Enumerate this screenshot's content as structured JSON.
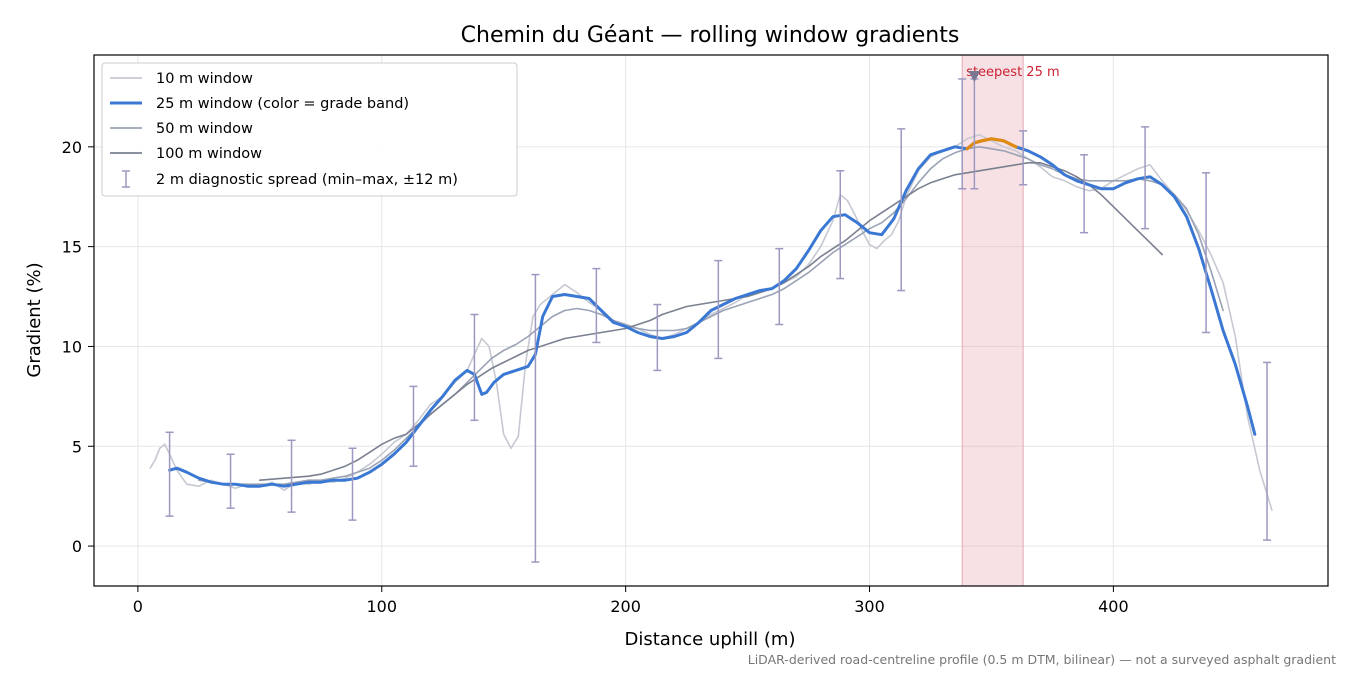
{
  "chart_data": {
    "type": "line",
    "title": "Chemin du Géant — rolling window gradients",
    "xlabel": "Distance uphill (m)",
    "ylabel": "Gradient (%)",
    "xlim": [
      -18,
      488
    ],
    "ylim": [
      -2,
      24.6
    ],
    "xticks": [
      0,
      100,
      200,
      300,
      400
    ],
    "yticks": [
      0,
      5,
      10,
      15,
      20
    ],
    "grid": true,
    "legend_position": "top-left",
    "footnote": "LiDAR-derived road-centreline profile (0.5 m DTM, bilinear) — not a surveyed asphalt gradient",
    "colors": {
      "w10": "#c6c9d2",
      "w25": "#3a78d4",
      "w25_peak": "#e08a10",
      "w50": "#9aa2b5",
      "w100": "#7a8090",
      "errorbar": "#9c98c0",
      "highlight": "#e8a8b4",
      "annotation": "#cc2233",
      "marker": "#7a7690"
    },
    "highlight_band": {
      "x": [
        338,
        363
      ],
      "label": "steepest 25 m"
    },
    "peak_marker": {
      "x": 343,
      "y": 23.5
    },
    "series": [
      {
        "name": "10 m window",
        "key": "w10",
        "x": [
          5,
          7,
          9,
          11,
          13,
          16,
          20,
          25,
          30,
          35,
          40,
          45,
          50,
          55,
          60,
          65,
          70,
          75,
          80,
          85,
          90,
          95,
          100,
          105,
          110,
          115,
          120,
          125,
          130,
          135,
          138,
          141,
          144,
          147,
          150,
          153,
          156,
          159,
          162,
          165,
          170,
          175,
          180,
          185,
          190,
          195,
          200,
          205,
          210,
          215,
          220,
          225,
          230,
          235,
          240,
          245,
          250,
          255,
          260,
          265,
          270,
          275,
          280,
          285,
          288,
          291,
          294,
          297,
          300,
          303,
          306,
          309,
          312,
          315,
          320,
          325,
          330,
          335,
          340,
          345,
          350,
          355,
          360,
          365,
          370,
          375,
          380,
          385,
          390,
          395,
          400,
          405,
          410,
          415,
          420,
          425,
          430,
          435,
          440,
          445,
          450,
          455,
          460,
          465
        ],
        "y": [
          3.9,
          4.3,
          4.9,
          5.1,
          4.6,
          3.8,
          3.1,
          3.0,
          3.3,
          3.1,
          2.9,
          3.1,
          3.0,
          3.2,
          2.8,
          3.2,
          3.1,
          3.3,
          3.2,
          3.4,
          3.7,
          4.1,
          4.6,
          5.2,
          5.6,
          6.3,
          7.1,
          7.5,
          8.2,
          8.8,
          9.6,
          10.4,
          10.0,
          8.2,
          5.6,
          4.9,
          5.5,
          9.2,
          11.5,
          12.1,
          12.6,
          13.1,
          12.7,
          12.2,
          11.8,
          11.3,
          11.0,
          10.9,
          10.6,
          10.4,
          10.6,
          10.9,
          11.2,
          11.6,
          11.9,
          12.2,
          12.6,
          12.8,
          12.9,
          13.2,
          13.5,
          14.1,
          15.0,
          16.3,
          17.6,
          17.3,
          16.6,
          15.8,
          15.1,
          14.9,
          15.3,
          15.6,
          16.3,
          17.5,
          18.8,
          19.5,
          19.8,
          20.0,
          20.4,
          20.6,
          20.3,
          20.0,
          19.8,
          19.4,
          19.0,
          18.5,
          18.3,
          18.0,
          17.8,
          17.9,
          18.3,
          18.6,
          18.9,
          19.1,
          18.3,
          17.6,
          16.8,
          15.8,
          14.6,
          13.2,
          10.5,
          6.5,
          3.8,
          1.8
        ]
      },
      {
        "name": "25 m window (color = grade band)",
        "key": "w25",
        "x": [
          13,
          16,
          20,
          25,
          30,
          35,
          40,
          45,
          50,
          55,
          60,
          65,
          70,
          75,
          80,
          85,
          90,
          95,
          100,
          105,
          110,
          115,
          120,
          125,
          130,
          135,
          138,
          141,
          143,
          146,
          150,
          155,
          160,
          163,
          166,
          170,
          175,
          180,
          185,
          190,
          195,
          200,
          205,
          210,
          215,
          220,
          225,
          230,
          235,
          240,
          245,
          250,
          255,
          260,
          265,
          270,
          275,
          280,
          285,
          290,
          295,
          300,
          305,
          310,
          315,
          320,
          325,
          330,
          335,
          340,
          343,
          346,
          350,
          355,
          360,
          365,
          370,
          375,
          380,
          385,
          390,
          395,
          400,
          405,
          410,
          415,
          420,
          425,
          430,
          435,
          440,
          445,
          450,
          455,
          458
        ],
        "y": [
          3.8,
          3.9,
          3.7,
          3.4,
          3.2,
          3.1,
          3.1,
          3.0,
          3.0,
          3.1,
          3.0,
          3.1,
          3.2,
          3.2,
          3.3,
          3.3,
          3.4,
          3.7,
          4.1,
          4.6,
          5.2,
          6.0,
          6.8,
          7.5,
          8.3,
          8.8,
          8.6,
          7.6,
          7.7,
          8.2,
          8.6,
          8.8,
          9.0,
          9.6,
          11.5,
          12.5,
          12.6,
          12.5,
          12.4,
          11.8,
          11.2,
          11.0,
          10.7,
          10.5,
          10.4,
          10.5,
          10.7,
          11.2,
          11.8,
          12.1,
          12.4,
          12.6,
          12.8,
          12.9,
          13.3,
          13.9,
          14.8,
          15.8,
          16.5,
          16.6,
          16.2,
          15.7,
          15.6,
          16.4,
          17.8,
          18.9,
          19.6,
          19.8,
          20.0,
          19.9,
          20.2,
          20.3,
          20.4,
          20.3,
          20.0,
          19.8,
          19.5,
          19.1,
          18.6,
          18.3,
          18.1,
          17.9,
          17.9,
          18.2,
          18.4,
          18.5,
          18.1,
          17.5,
          16.5,
          14.9,
          12.9,
          10.8,
          9.1,
          7.0,
          5.6
        ]
      },
      {
        "name": "50 m window",
        "key": "w50",
        "x": [
          25,
          30,
          35,
          40,
          45,
          50,
          55,
          60,
          65,
          70,
          75,
          80,
          85,
          90,
          95,
          100,
          105,
          110,
          115,
          120,
          125,
          130,
          135,
          140,
          145,
          150,
          155,
          160,
          165,
          170,
          175,
          180,
          185,
          190,
          195,
          200,
          205,
          210,
          215,
          220,
          225,
          230,
          235,
          240,
          245,
          250,
          255,
          260,
          265,
          270,
          275,
          280,
          285,
          290,
          295,
          300,
          305,
          310,
          315,
          320,
          325,
          330,
          335,
          340,
          345,
          350,
          355,
          360,
          365,
          370,
          375,
          380,
          385,
          390,
          395,
          400,
          405,
          410,
          415,
          420,
          425,
          430,
          435,
          440,
          445
        ],
        "y": [
          3.3,
          3.2,
          3.1,
          3.1,
          3.1,
          3.1,
          3.1,
          3.1,
          3.2,
          3.3,
          3.3,
          3.4,
          3.5,
          3.7,
          3.9,
          4.3,
          4.8,
          5.4,
          6.0,
          6.6,
          7.1,
          7.6,
          8.2,
          8.8,
          9.4,
          9.8,
          10.1,
          10.5,
          11.0,
          11.5,
          11.8,
          11.9,
          11.8,
          11.6,
          11.3,
          11.1,
          10.9,
          10.8,
          10.8,
          10.8,
          10.9,
          11.2,
          11.5,
          11.8,
          12.0,
          12.2,
          12.4,
          12.6,
          12.9,
          13.3,
          13.7,
          14.2,
          14.7,
          15.1,
          15.5,
          15.9,
          16.2,
          16.7,
          17.4,
          18.2,
          18.9,
          19.4,
          19.7,
          19.9,
          20.0,
          19.9,
          19.8,
          19.6,
          19.4,
          19.1,
          18.9,
          18.6,
          18.4,
          18.3,
          18.3,
          18.3,
          18.3,
          18.4,
          18.3,
          18.1,
          17.6,
          16.9,
          15.6,
          13.8,
          11.8
        ]
      },
      {
        "name": "100 m window",
        "key": "w100",
        "x": [
          50,
          55,
          60,
          65,
          70,
          75,
          80,
          85,
          90,
          95,
          100,
          105,
          110,
          115,
          120,
          125,
          130,
          135,
          140,
          145,
          150,
          155,
          160,
          165,
          170,
          175,
          180,
          185,
          190,
          195,
          200,
          205,
          210,
          215,
          220,
          225,
          230,
          235,
          240,
          245,
          250,
          255,
          260,
          265,
          270,
          275,
          280,
          285,
          290,
          295,
          300,
          305,
          310,
          315,
          320,
          325,
          330,
          335,
          340,
          345,
          350,
          355,
          360,
          365,
          370,
          375,
          380,
          385,
          390,
          395,
          400,
          405,
          410,
          415,
          420
        ],
        "y": [
          3.3,
          3.35,
          3.4,
          3.45,
          3.5,
          3.6,
          3.8,
          4.0,
          4.3,
          4.7,
          5.1,
          5.4,
          5.6,
          6.1,
          6.6,
          7.1,
          7.6,
          8.1,
          8.5,
          8.9,
          9.2,
          9.5,
          9.8,
          10.0,
          10.2,
          10.4,
          10.5,
          10.6,
          10.7,
          10.8,
          10.9,
          11.1,
          11.3,
          11.6,
          11.8,
          12.0,
          12.1,
          12.2,
          12.3,
          12.4,
          12.5,
          12.7,
          12.9,
          13.2,
          13.6,
          14.0,
          14.5,
          14.9,
          15.3,
          15.8,
          16.3,
          16.7,
          17.1,
          17.5,
          17.9,
          18.2,
          18.4,
          18.6,
          18.7,
          18.8,
          18.9,
          19.0,
          19.1,
          19.2,
          19.2,
          19.0,
          18.8,
          18.5,
          18.1,
          17.6,
          17.0,
          16.4,
          15.8,
          15.2,
          14.6
        ]
      }
    ],
    "errorbars": {
      "name": "2 m diagnostic spread (min–max, ±12 m)",
      "x": [
        13,
        38,
        63,
        88,
        113,
        138,
        163,
        188,
        213,
        238,
        263,
        288,
        313,
        338,
        343,
        363,
        388,
        413,
        438,
        463
      ],
      "lo": [
        1.5,
        1.9,
        1.7,
        1.3,
        4.0,
        6.3,
        -0.8,
        10.2,
        8.8,
        9.4,
        11.1,
        13.4,
        12.8,
        17.9,
        17.9,
        18.1,
        15.7,
        15.9,
        10.7,
        0.3
      ],
      "hi": [
        5.7,
        4.6,
        5.3,
        4.9,
        8.0,
        11.6,
        13.6,
        13.9,
        12.1,
        14.3,
        14.9,
        18.8,
        20.9,
        23.4,
        23.4,
        20.8,
        19.6,
        21.0,
        18.7,
        9.2
      ]
    }
  }
}
